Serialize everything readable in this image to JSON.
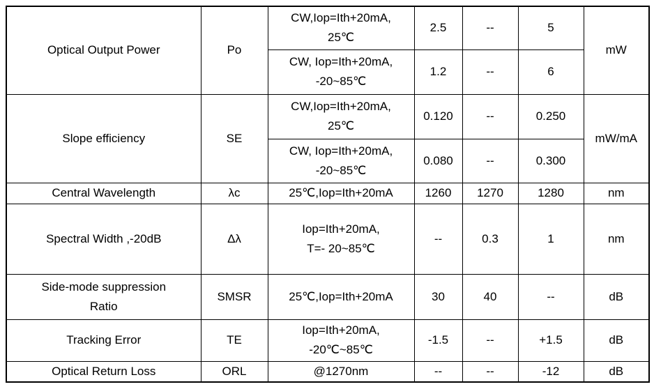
{
  "table": {
    "rows": [
      {
        "parameter": "Optical Output Power",
        "symbol": "Po",
        "unit": "mW",
        "sub": [
          {
            "condition": "CW,Iop=Ith+20mA,\n25℃",
            "min": "2.5",
            "typ": "--",
            "max": "5"
          },
          {
            "condition": "CW, Iop=Ith+20mA,\n-20~85℃",
            "min": "1.2",
            "typ": "--",
            "max": "6"
          }
        ]
      },
      {
        "parameter": "Slope efficiency",
        "symbol": "SE",
        "unit": "mW/mA",
        "sub": [
          {
            "condition": "CW,Iop=Ith+20mA,\n25℃",
            "min": "0.120",
            "typ": "--",
            "max": "0.250"
          },
          {
            "condition": "CW, Iop=Ith+20mA,\n-20~85℃",
            "min": "0.080",
            "typ": "--",
            "max": "0.300"
          }
        ]
      },
      {
        "parameter": "Central Wavelength",
        "symbol": "λc",
        "condition": "25℃,Iop=Ith+20mA",
        "min": "1260",
        "typ": "1270",
        "max": "1280",
        "unit": "nm"
      },
      {
        "parameter": "Spectral Width ,-20dB",
        "symbol": "Δλ",
        "condition": "Iop=Ith+20mA,\nT=- 20~85℃",
        "min": "--",
        "typ": "0.3",
        "max": "1",
        "unit": "nm"
      },
      {
        "parameter": "Side-mode suppression\nRatio",
        "symbol": "SMSR",
        "condition": "25℃,Iop=Ith+20mA",
        "min": "30",
        "typ": "40",
        "max": "--",
        "unit": "dB"
      },
      {
        "parameter": "Tracking Error",
        "symbol": "TE",
        "condition": "Iop=Ith+20mA,\n-20℃~85℃",
        "min": "-1.5",
        "typ": "--",
        "max": "+1.5",
        "unit": "dB"
      },
      {
        "parameter": "Optical Return Loss",
        "symbol": "ORL",
        "condition": "@1270nm",
        "min": "--",
        "typ": "--",
        "max": "-12",
        "unit": "dB"
      }
    ]
  }
}
